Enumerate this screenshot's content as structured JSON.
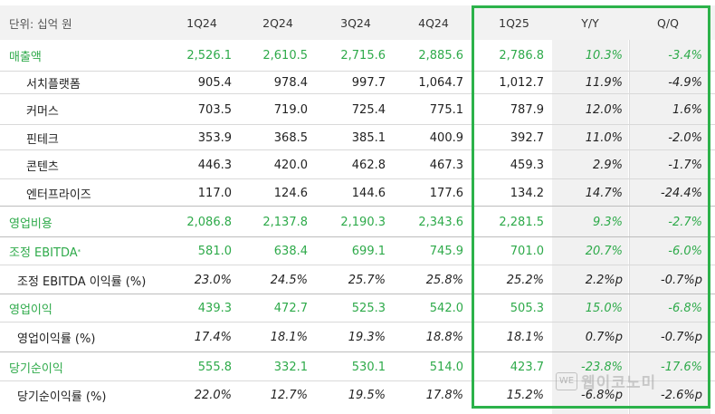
{
  "header": {
    "unit": "단위: 십억 원",
    "cols": [
      "1Q24",
      "2Q24",
      "3Q24",
      "4Q24",
      "1Q25",
      "Y/Y",
      "Q/Q"
    ]
  },
  "rows": [
    {
      "label": "매출액",
      "style": "main",
      "values": [
        "2,526.1",
        "2,610.5",
        "2,715.6",
        "2,885.6",
        "2,786.8",
        "10.3%",
        "-3.4%"
      ]
    },
    {
      "label": "서치플랫폼",
      "style": "sub",
      "values": [
        "905.4",
        "978.4",
        "997.7",
        "1,064.7",
        "1,012.7",
        "11.9%",
        "-4.9%"
      ]
    },
    {
      "label": "커머스",
      "style": "sub",
      "values": [
        "703.5",
        "719.0",
        "725.4",
        "775.1",
        "787.9",
        "12.0%",
        "1.6%"
      ]
    },
    {
      "label": "핀테크",
      "style": "sub",
      "values": [
        "353.9",
        "368.5",
        "385.1",
        "400.9",
        "392.7",
        "11.0%",
        "-2.0%"
      ]
    },
    {
      "label": "콘텐츠",
      "style": "sub",
      "values": [
        "446.3",
        "420.0",
        "462.8",
        "467.3",
        "459.3",
        "2.9%",
        "-1.7%"
      ]
    },
    {
      "label": "엔터프라이즈",
      "style": "sub",
      "values": [
        "117.0",
        "124.6",
        "144.6",
        "177.6",
        "134.2",
        "14.7%",
        "-24.4%"
      ]
    },
    {
      "label": "영업비용",
      "style": "main",
      "values": [
        "2,086.8",
        "2,137.8",
        "2,190.3",
        "2,343.6",
        "2,281.5",
        "9.3%",
        "-2.7%"
      ]
    },
    {
      "label": "조정 EBITDA",
      "sup": "*",
      "style": "main",
      "values": [
        "581.0",
        "638.4",
        "699.1",
        "745.9",
        "701.0",
        "20.7%",
        "-6.0%"
      ]
    },
    {
      "label": "조정 EBITDA 이익률 (%)",
      "style": "ratio",
      "values": [
        "23.0%",
        "24.5%",
        "25.7%",
        "25.8%",
        "25.2%",
        "2.2%p",
        "-0.7%p"
      ]
    },
    {
      "label": "영업이익",
      "style": "main",
      "values": [
        "439.3",
        "472.7",
        "525.3",
        "542.0",
        "505.3",
        "15.0%",
        "-6.8%"
      ]
    },
    {
      "label": "영업이익률 (%)",
      "style": "ratio",
      "values": [
        "17.4%",
        "18.1%",
        "19.3%",
        "18.8%",
        "18.1%",
        "0.7%p",
        "-0.7%p"
      ]
    },
    {
      "label": "당기순이익",
      "style": "main",
      "values": [
        "555.8",
        "332.1",
        "530.1",
        "514.0",
        "423.7",
        "-23.8%",
        "-17.6%"
      ]
    },
    {
      "label": "당기순이익률 (%)",
      "style": "ratio",
      "values": [
        "22.0%",
        "12.7%",
        "19.5%",
        "17.8%",
        "15.2%",
        "-6.8%p",
        "-2.6%p"
      ]
    }
  ],
  "watermark": {
    "badge": "WE",
    "text": "웹이코노미"
  },
  "colors": {
    "accent": "#2cb24a",
    "header_bg": "#f2f2f2",
    "shade": "#f1f1f1"
  }
}
